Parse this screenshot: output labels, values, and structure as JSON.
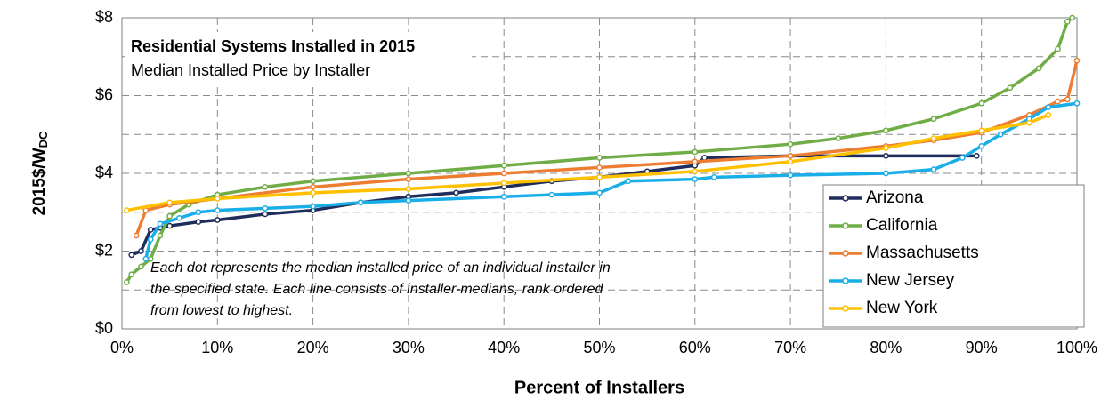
{
  "chart_data": {
    "type": "line",
    "title": "Residential Systems Installed in 2015",
    "subtitle": "Median Installed Price by Installer",
    "annotation": [
      "Each dot represents the median installed price of an individual  installer in",
      "the specified state. Each line consists of installer-medians, rank ordered",
      "from lowest to highest."
    ],
    "x_label": "Percent of Installers",
    "y_label": "2015$/W",
    "y_label_sub": "DC",
    "xlim": [
      0,
      100
    ],
    "ylim": [
      0,
      8
    ],
    "xticks": [
      {
        "value": 0,
        "label": "0%"
      },
      {
        "value": 10,
        "label": "10%"
      },
      {
        "value": 20,
        "label": "20%"
      },
      {
        "value": 30,
        "label": "30%"
      },
      {
        "value": 40,
        "label": "40%"
      },
      {
        "value": 50,
        "label": "50%"
      },
      {
        "value": 60,
        "label": "60%"
      },
      {
        "value": 70,
        "label": "70%"
      },
      {
        "value": 80,
        "label": "80%"
      },
      {
        "value": 90,
        "label": "90%"
      },
      {
        "value": 100,
        "label": "100%"
      }
    ],
    "yticks": [
      {
        "value": 0,
        "label": "$0"
      },
      {
        "value": 2,
        "label": "$2"
      },
      {
        "value": 4,
        "label": "$4"
      },
      {
        "value": 6,
        "label": "$6"
      },
      {
        "value": 8,
        "label": "$8"
      }
    ],
    "minor_yticks": [
      1,
      3,
      5,
      7
    ],
    "grid": true,
    "legend": "right",
    "series": [
      {
        "name": "Arizona",
        "color": "#1f2d5c",
        "x": [
          1,
          2,
          3,
          4,
          5,
          8,
          10,
          15,
          20,
          25,
          30,
          35,
          40,
          45,
          50,
          55,
          60,
          61,
          70,
          80,
          89.5
        ],
        "values": [
          1.9,
          2.0,
          2.55,
          2.6,
          2.65,
          2.75,
          2.8,
          2.95,
          3.05,
          3.25,
          3.4,
          3.5,
          3.65,
          3.8,
          3.9,
          4.05,
          4.2,
          4.4,
          4.45,
          4.45,
          4.45
        ]
      },
      {
        "name": "California",
        "color": "#70ad47",
        "x": [
          0.5,
          1,
          2,
          3,
          4,
          5,
          7,
          10,
          15,
          20,
          30,
          40,
          50,
          60,
          70,
          75,
          80,
          85,
          90,
          93,
          96,
          98,
          99,
          99.5
        ],
        "values": [
          1.2,
          1.4,
          1.6,
          1.8,
          2.4,
          2.9,
          3.2,
          3.45,
          3.65,
          3.8,
          4.0,
          4.2,
          4.4,
          4.55,
          4.75,
          4.9,
          5.1,
          5.4,
          5.8,
          6.2,
          6.7,
          7.2,
          7.9,
          8.0
        ]
      },
      {
        "name": "Massachusetts",
        "color": "#ed7d31",
        "x": [
          1.5,
          2.5,
          5,
          10,
          20,
          30,
          40,
          50,
          60,
          70,
          80,
          85,
          90,
          95,
          98,
          99,
          100
        ],
        "values": [
          2.4,
          3.05,
          3.2,
          3.35,
          3.65,
          3.85,
          4.0,
          4.15,
          4.3,
          4.45,
          4.7,
          4.85,
          5.05,
          5.5,
          5.85,
          5.9,
          6.9
        ]
      },
      {
        "name": "New Jersey",
        "color": "#1aaee8",
        "x": [
          2.5,
          3,
          4,
          6,
          8,
          10,
          15,
          20,
          25,
          30,
          40,
          45,
          50,
          53,
          60,
          62,
          70,
          80,
          85,
          88,
          90,
          92,
          95,
          97,
          100
        ],
        "values": [
          1.8,
          2.3,
          2.7,
          2.85,
          3.0,
          3.05,
          3.1,
          3.15,
          3.25,
          3.3,
          3.4,
          3.45,
          3.5,
          3.8,
          3.85,
          3.9,
          3.95,
          4.0,
          4.1,
          4.4,
          4.7,
          5.0,
          5.4,
          5.7,
          5.8
        ]
      },
      {
        "name": "New York",
        "color": "#ffc000",
        "x": [
          0.5,
          5,
          10,
          20,
          30,
          40,
          50,
          60,
          70,
          80,
          85,
          90,
          95,
          97
        ],
        "values": [
          3.05,
          3.25,
          3.35,
          3.5,
          3.6,
          3.75,
          3.9,
          4.05,
          4.3,
          4.65,
          4.9,
          5.1,
          5.3,
          5.5
        ]
      }
    ]
  }
}
